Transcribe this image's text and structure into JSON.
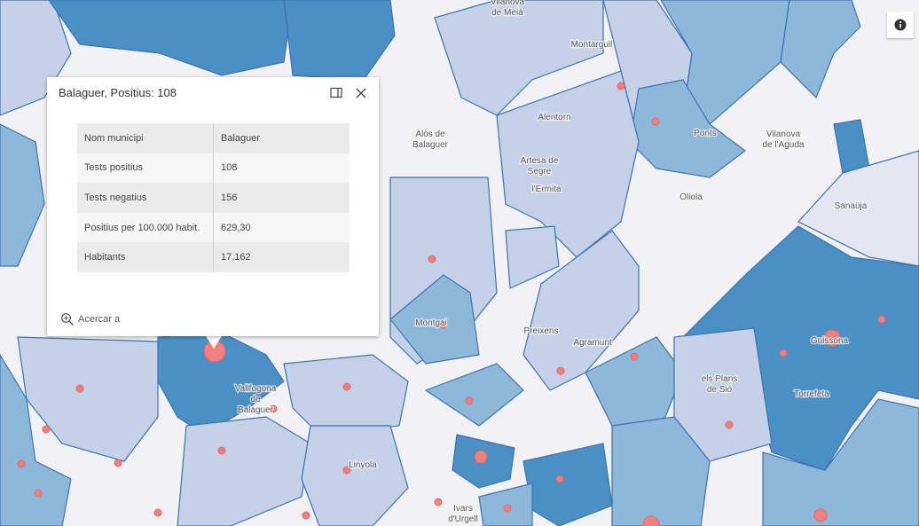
{
  "popup": {
    "title": "Balaguer, Positius: 108",
    "table": {
      "rows": [
        [
          "Nom municipi",
          "Balaguer"
        ],
        [
          "Tests positius",
          "108"
        ],
        [
          "Tests negatius",
          "156"
        ],
        [
          "Positius per 100.000 habit.",
          "629,30"
        ],
        [
          "Habitants",
          "17.162"
        ]
      ]
    },
    "zoom_action": "Acercar a"
  },
  "map": {
    "labels": [
      [
        "Vilanova",
        "de Meià"
      ],
      [
        "Montargull"
      ],
      [
        "Alentorn"
      ],
      [
        "Alòs de",
        "Balaguer"
      ],
      [
        "Artesa de",
        "Segre"
      ],
      [
        "l'Ermita"
      ],
      [
        "Ponts"
      ],
      [
        "Vilanova",
        "de l'Aguda"
      ],
      [
        "Oliola"
      ],
      [
        "Sanaüja"
      ],
      [
        "Montgai"
      ],
      [
        "Preixens"
      ],
      [
        "Agramunt"
      ],
      [
        "Guissona"
      ],
      [
        "els Plans",
        "de Sió"
      ],
      [
        "Torrefeta"
      ],
      [
        "Vallfogona",
        "de",
        "Balaguer"
      ],
      [
        "Linyola"
      ],
      [
        "Ivars",
        "d'Urgell"
      ]
    ]
  }
}
